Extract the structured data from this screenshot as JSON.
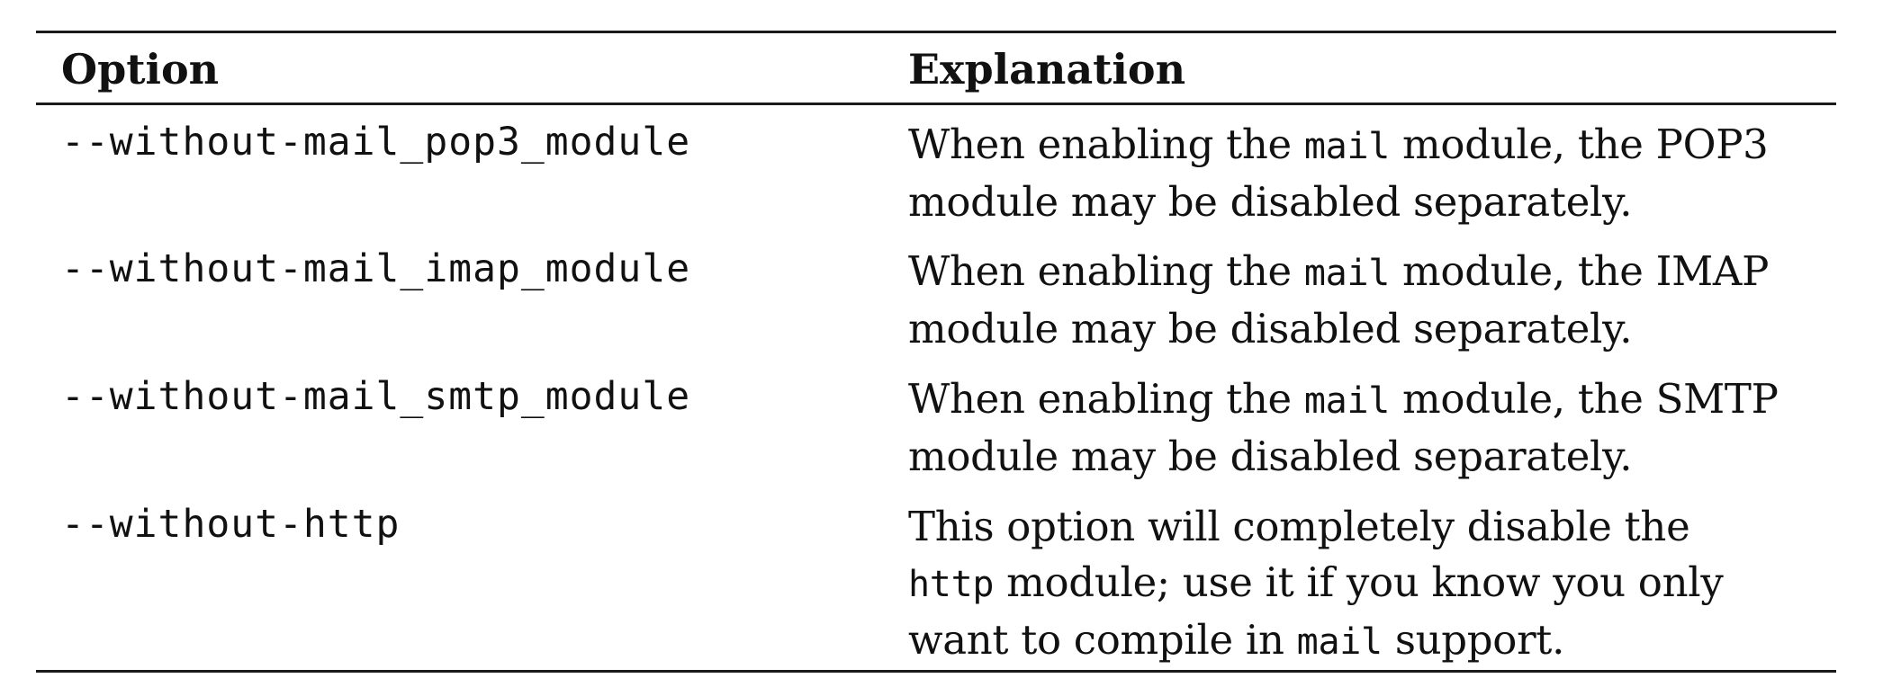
{
  "table": {
    "headers": {
      "option": "Option",
      "explanation": "Explanation"
    },
    "rows": [
      {
        "option": "--without-mail_pop3_module",
        "explanation": {
          "line1_pre": "When enabling the ",
          "line1_code": "mail",
          "line1_post": " module, the POP3",
          "line2": "module may be disabled separately."
        }
      },
      {
        "option": "--without-mail_imap_module",
        "explanation": {
          "line1_pre": "When enabling the ",
          "line1_code": "mail",
          "line1_post": " module, the IMAP",
          "line2": "module may be disabled separately."
        }
      },
      {
        "option": "--without-mail_smtp_module",
        "explanation": {
          "line1_pre": "When enabling the ",
          "line1_code": "mail",
          "line1_post": " module, the SMTP",
          "line2": "module may be disabled separately."
        }
      },
      {
        "option": "--without-http",
        "explanation": {
          "line1": "This option will completely disable the",
          "line2_code": "http",
          "line2_post": " module; use it if you know you only",
          "line3_pre": "want to compile in ",
          "line3_code": "mail",
          "line3_post": " support."
        }
      }
    ]
  }
}
